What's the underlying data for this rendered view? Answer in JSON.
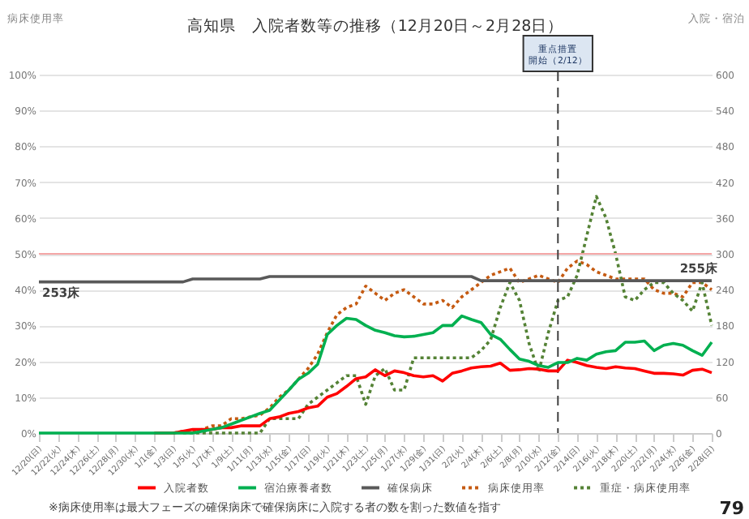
{
  "chart_data": {
    "type": "line",
    "title": "高知県　入院者数等の推移（12月20日～2月28日）",
    "ylabel": "病床使用率",
    "y2label": "入院・宿泊",
    "categories": [
      "12/20(日)",
      null,
      "12/22(火)",
      null,
      "12/24(木)",
      null,
      "12/26(土)",
      null,
      "12/28(月)",
      null,
      "12/30(水)",
      null,
      "1/1(金)",
      null,
      "1/3(日)",
      null,
      "1/5(火)",
      null,
      "1/7(木)",
      null,
      "1/9(土)",
      null,
      "1/11(月)",
      null,
      "1/13(水)",
      null,
      "1/15(金)",
      null,
      "1/17(日)",
      null,
      "1/19(火)",
      null,
      "1/21(木)",
      null,
      "1/23(土)",
      null,
      "1/25(月)",
      null,
      "1/27(水)",
      null,
      "1/29(金)",
      null,
      "1/31(日)",
      null,
      "2/2(火)",
      null,
      "2/4(木)",
      null,
      "2/6(土)",
      null,
      "2/8(月)",
      null,
      "2/10(水)",
      null,
      "2/12(金)",
      null,
      "2/14(日)",
      null,
      "2/16(火)",
      null,
      "2/18(木)",
      null,
      "2/20(土)",
      null,
      "2/22(月)",
      null,
      "2/24(水)",
      null,
      "2/26(金)",
      null,
      "2/28(日)"
    ],
    "series": [
      {
        "name": "入院者数",
        "color": "#ff0000",
        "axis": "y2",
        "values": [
          null,
          null,
          null,
          null,
          null,
          null,
          null,
          null,
          null,
          null,
          null,
          null,
          0,
          0,
          0,
          3,
          6,
          6,
          6,
          9,
          9,
          12,
          12,
          12,
          24,
          27,
          33,
          36,
          42,
          45,
          60,
          66,
          78,
          91,
          94,
          106,
          96,
          104,
          101,
          96,
          94,
          96,
          87,
          100,
          104,
          109,
          111,
          112,
          117,
          105,
          106,
          108,
          107,
          104,
          104,
          122,
          118,
          113,
          110,
          108,
          111,
          109,
          108,
          104,
          100,
          100,
          99,
          97,
          105,
          107,
          101
        ]
      },
      {
        "name": "宿泊療養者数",
        "color": "#00b050",
        "axis": "y2",
        "values": [
          0,
          0,
          0,
          0,
          0,
          0,
          0,
          0,
          0,
          0,
          0,
          0,
          0,
          0,
          0,
          0,
          0,
          3,
          6,
          9,
          15,
          21,
          27,
          33,
          38,
          55,
          72,
          90,
          100,
          115,
          165,
          180,
          192,
          190,
          180,
          172,
          168,
          163,
          161,
          162,
          165,
          168,
          180,
          180,
          196,
          190,
          185,
          165,
          157,
          140,
          124,
          120,
          113,
          110,
          118,
          118,
          125,
          122,
          132,
          136,
          138,
          152,
          152,
          154,
          138,
          147,
          150,
          147,
          138,
          130,
          152
        ]
      },
      {
        "name": "確保病床",
        "color": "#595959",
        "axis": "y2",
        "value_labels": [
          "253床",
          null,
          null,
          null,
          null,
          null,
          null,
          null,
          null,
          null,
          null,
          null,
          null,
          null,
          null,
          null,
          null,
          null,
          null,
          null,
          null,
          null,
          null,
          null,
          null,
          null,
          null,
          null,
          null,
          null,
          null,
          null,
          null,
          null,
          null,
          null,
          null,
          null,
          null,
          null,
          null,
          null,
          null,
          null,
          null,
          null,
          null,
          null,
          null,
          null,
          null,
          null,
          null,
          null,
          null,
          null,
          null,
          null,
          null,
          null,
          null,
          null,
          null,
          null,
          null,
          null,
          null,
          null,
          null,
          null,
          "255床"
        ],
        "values": [
          253,
          253,
          253,
          253,
          253,
          253,
          253,
          253,
          253,
          253,
          253,
          253,
          253,
          253,
          253,
          253,
          258,
          258,
          258,
          258,
          258,
          258,
          258,
          258,
          262,
          262,
          262,
          262,
          262,
          262,
          262,
          262,
          262,
          262,
          262,
          262,
          262,
          262,
          262,
          262,
          262,
          262,
          262,
          262,
          262,
          262,
          255,
          255,
          255,
          255,
          255,
          255,
          255,
          255,
          255,
          255,
          255,
          255,
          255,
          255,
          255,
          255,
          255,
          255,
          255,
          255,
          255,
          255,
          255,
          255,
          255
        ]
      },
      {
        "name": "病床使用率",
        "color": "#c55a11",
        "line_style": "dotted",
        "values": [
          null,
          null,
          null,
          null,
          null,
          null,
          null,
          null,
          null,
          null,
          null,
          null,
          null,
          null,
          0,
          0.5,
          0.5,
          1,
          2,
          2,
          4,
          4,
          4.5,
          5,
          7,
          10,
          12,
          15,
          18,
          22,
          28,
          33,
          35,
          36,
          41,
          39,
          37,
          39,
          40,
          38,
          36,
          36,
          37,
          35,
          38,
          40,
          42,
          44,
          45,
          46,
          42,
          43,
          44,
          43,
          42,
          46,
          48,
          47,
          45,
          44,
          43,
          43,
          43,
          43,
          40,
          39,
          39,
          38,
          42,
          42,
          40
        ]
      },
      {
        "name": "重症・病床使用率",
        "color": "#548235",
        "line_style": "dotted",
        "values": [
          null,
          null,
          null,
          null,
          null,
          null,
          null,
          null,
          null,
          null,
          null,
          null,
          null,
          null,
          null,
          0,
          0,
          0,
          0,
          0,
          0,
          0,
          0,
          0,
          4,
          4,
          4,
          4,
          8,
          10,
          12,
          14,
          16,
          16,
          8,
          16,
          18,
          12,
          12,
          21,
          21,
          21,
          21,
          21,
          21,
          21,
          23,
          26,
          35,
          42,
          37,
          25,
          17,
          28,
          37,
          38,
          44,
          55,
          66,
          60,
          50,
          38,
          37,
          40,
          42,
          42,
          39,
          37,
          34,
          42,
          30
        ]
      }
    ],
    "ylim": [
      0,
      100
    ],
    "yticks": [
      {
        "value": 0,
        "label": "0%"
      },
      {
        "value": 10,
        "label": "10%"
      },
      {
        "value": 20,
        "label": "20%"
      },
      {
        "value": 30,
        "label": "30%"
      },
      {
        "value": 40,
        "label": "40%"
      },
      {
        "value": 50,
        "label": "50%"
      },
      {
        "value": 60,
        "label": "60%"
      },
      {
        "value": 70,
        "label": "70%"
      },
      {
        "value": 80,
        "label": "80%"
      },
      {
        "value": 90,
        "label": "90%"
      },
      {
        "value": 100,
        "label": "100%"
      }
    ],
    "y2lim": [
      0,
      600
    ],
    "y2ticks": [
      0,
      60,
      120,
      180,
      240,
      300,
      360,
      420,
      480,
      540,
      600
    ],
    "grid": "y",
    "legend": "bottom",
    "ref_lines": [
      {
        "axis": "y",
        "value": 50,
        "color": "#f4a6a6"
      },
      {
        "axis": "x",
        "value": "2/12(金)",
        "label": "重点措置開始（2/12）",
        "color": "#404040",
        "line_style": "dashed"
      }
    ],
    "annotations": [
      "※病床使用率は最大フェーズの確保病床で確保病床に入院する者の数を割った数値を指す",
      "79"
    ]
  }
}
